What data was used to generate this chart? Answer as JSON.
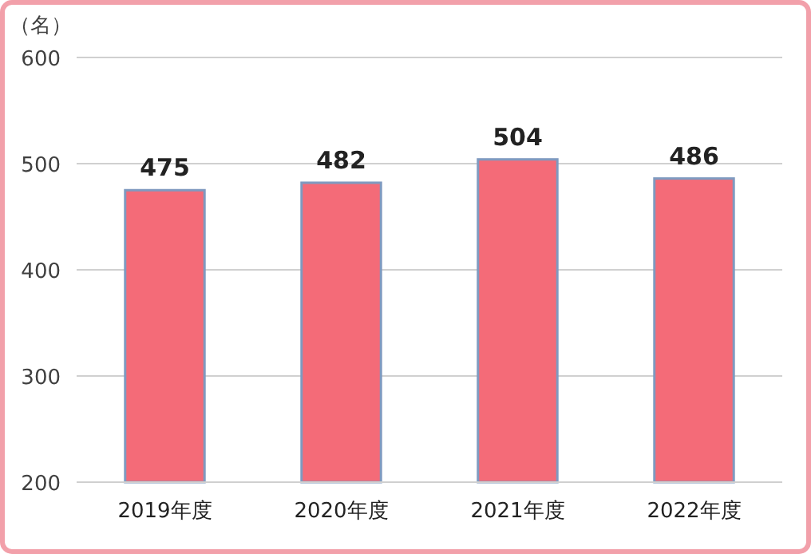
{
  "chart_data": {
    "type": "bar",
    "ylabel": "（名）",
    "categories": [
      "2019年度",
      "2020年度",
      "2021年度",
      "2022年度"
    ],
    "values": [
      475,
      482,
      504,
      486
    ],
    "color": "#f46b78",
    "ylim": [
      200,
      600
    ],
    "yticks": [
      200,
      300,
      400,
      500,
      600
    ],
    "grid": "y",
    "data_labels": true
  }
}
